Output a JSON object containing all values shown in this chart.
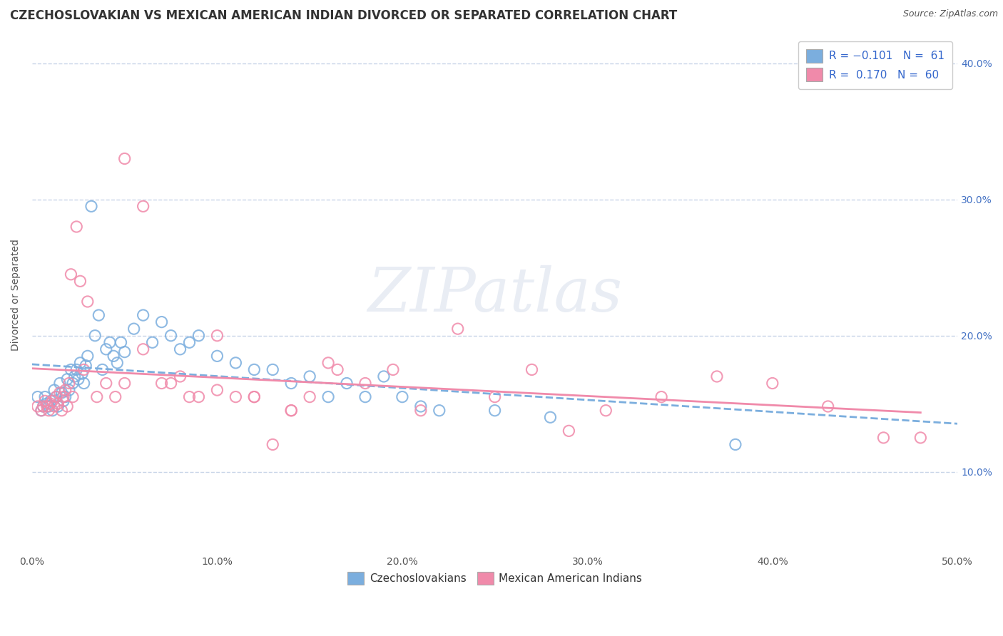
{
  "title": "CZECHOSLOVAKIAN VS MEXICAN AMERICAN INDIAN DIVORCED OR SEPARATED CORRELATION CHART",
  "source": "Source: ZipAtlas.com",
  "ylabel": "Divorced or Separated",
  "xlim": [
    0.0,
    0.5
  ],
  "ylim": [
    0.04,
    0.42
  ],
  "x_ticks": [
    0.0,
    0.1,
    0.2,
    0.3,
    0.4,
    0.5
  ],
  "x_tick_labels": [
    "0.0%",
    "10.0%",
    "20.0%",
    "30.0%",
    "40.0%",
    "50.0%"
  ],
  "y_ticks": [
    0.1,
    0.2,
    0.3,
    0.4
  ],
  "y_tick_labels": [
    "10.0%",
    "20.0%",
    "30.0%",
    "40.0%"
  ],
  "czech_color": "#7baede",
  "mexican_color": "#f08aaa",
  "watermark": "ZIPatlas",
  "background_color": "#ffffff",
  "grid_color": "#c8d4e8",
  "title_fontsize": 12,
  "source_fontsize": 9,
  "axis_fontsize": 10,
  "tick_fontsize": 10,
  "legend_fontsize": 11,
  "czech_scatter_x": [
    0.003,
    0.005,
    0.006,
    0.007,
    0.008,
    0.009,
    0.01,
    0.011,
    0.012,
    0.013,
    0.014,
    0.015,
    0.016,
    0.017,
    0.018,
    0.019,
    0.02,
    0.021,
    0.022,
    0.023,
    0.024,
    0.025,
    0.026,
    0.027,
    0.028,
    0.029,
    0.03,
    0.032,
    0.034,
    0.036,
    0.038,
    0.04,
    0.042,
    0.044,
    0.046,
    0.048,
    0.05,
    0.055,
    0.06,
    0.065,
    0.07,
    0.075,
    0.08,
    0.085,
    0.09,
    0.1,
    0.11,
    0.12,
    0.13,
    0.14,
    0.15,
    0.16,
    0.17,
    0.18,
    0.19,
    0.2,
    0.21,
    0.22,
    0.25,
    0.28,
    0.38
  ],
  "czech_scatter_y": [
    0.155,
    0.145,
    0.148,
    0.155,
    0.15,
    0.148,
    0.152,
    0.145,
    0.16,
    0.155,
    0.148,
    0.165,
    0.158,
    0.152,
    0.155,
    0.168,
    0.16,
    0.175,
    0.165,
    0.17,
    0.175,
    0.168,
    0.18,
    0.172,
    0.165,
    0.178,
    0.185,
    0.295,
    0.2,
    0.215,
    0.175,
    0.19,
    0.195,
    0.185,
    0.18,
    0.195,
    0.188,
    0.205,
    0.215,
    0.195,
    0.21,
    0.2,
    0.19,
    0.195,
    0.2,
    0.185,
    0.18,
    0.175,
    0.175,
    0.165,
    0.17,
    0.155,
    0.165,
    0.155,
    0.17,
    0.155,
    0.148,
    0.145,
    0.145,
    0.14,
    0.12
  ],
  "mexican_scatter_x": [
    0.003,
    0.005,
    0.006,
    0.007,
    0.008,
    0.009,
    0.01,
    0.011,
    0.012,
    0.013,
    0.014,
    0.015,
    0.016,
    0.017,
    0.018,
    0.019,
    0.02,
    0.021,
    0.022,
    0.024,
    0.026,
    0.028,
    0.03,
    0.035,
    0.04,
    0.045,
    0.05,
    0.06,
    0.07,
    0.08,
    0.09,
    0.1,
    0.11,
    0.12,
    0.13,
    0.14,
    0.15,
    0.165,
    0.18,
    0.195,
    0.21,
    0.23,
    0.25,
    0.27,
    0.29,
    0.31,
    0.34,
    0.37,
    0.4,
    0.43,
    0.46,
    0.05,
    0.06,
    0.075,
    0.085,
    0.1,
    0.12,
    0.14,
    0.16,
    0.48
  ],
  "mexican_scatter_y": [
    0.148,
    0.145,
    0.148,
    0.152,
    0.148,
    0.145,
    0.15,
    0.152,
    0.148,
    0.155,
    0.15,
    0.158,
    0.145,
    0.155,
    0.16,
    0.148,
    0.165,
    0.245,
    0.155,
    0.28,
    0.24,
    0.175,
    0.225,
    0.155,
    0.165,
    0.155,
    0.165,
    0.19,
    0.165,
    0.17,
    0.155,
    0.16,
    0.155,
    0.155,
    0.12,
    0.145,
    0.155,
    0.175,
    0.165,
    0.175,
    0.145,
    0.205,
    0.155,
    0.175,
    0.13,
    0.145,
    0.155,
    0.17,
    0.165,
    0.148,
    0.125,
    0.33,
    0.295,
    0.165,
    0.155,
    0.2,
    0.155,
    0.145,
    0.18,
    0.125
  ]
}
